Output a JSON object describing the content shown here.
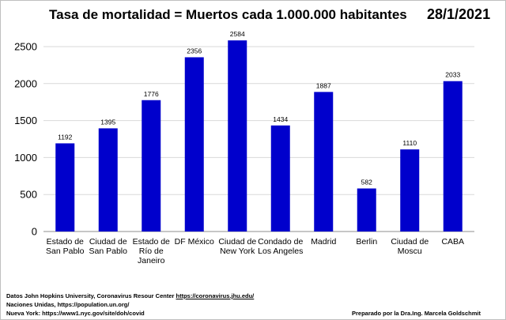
{
  "chart_data": {
    "type": "bar",
    "title": "Tasa de mortalidad = Muertos cada 1.000.000 habitantes",
    "date": "28/1/2021",
    "categories": [
      [
        "Estado de",
        "San Pablo"
      ],
      [
        "Ciudad de",
        "San Pablo"
      ],
      [
        "Estado de",
        "Río de",
        "Janeiro"
      ],
      [
        "DF México"
      ],
      [
        "Ciudad de",
        "New York"
      ],
      [
        "Condado de",
        "Los Angeles"
      ],
      [
        "Madrid"
      ],
      [
        "Berlin"
      ],
      [
        "Ciudad de",
        "Moscu"
      ],
      [
        "CABA"
      ]
    ],
    "values": [
      1192,
      1395,
      1776,
      2356,
      2584,
      1434,
      1887,
      582,
      1110,
      2033
    ],
    "data_labels": [
      "1192",
      "1395",
      "1776",
      "2356",
      "2584",
      "1434",
      "1887",
      "582",
      "1110",
      "2033"
    ],
    "yticks": [
      "0",
      "500",
      "1000",
      "1500",
      "2000",
      "2500"
    ],
    "ylim": [
      0,
      2500
    ],
    "grid": true,
    "bar_color": "#0000CC"
  },
  "footer": {
    "line1_prefix": "Datos  John Hopkins University, Coronavirus Resour Center ",
    "line1_link": "https://coronavirus.jhu.edu/",
    "line2": "Naciones Unidas, https://population.un.org/",
    "line3": "Nueva York: https://www1.nyc.gov/site/doh/covid",
    "credit": "Preparado por la Dra.Ing.  Marcela Goldschmit"
  }
}
